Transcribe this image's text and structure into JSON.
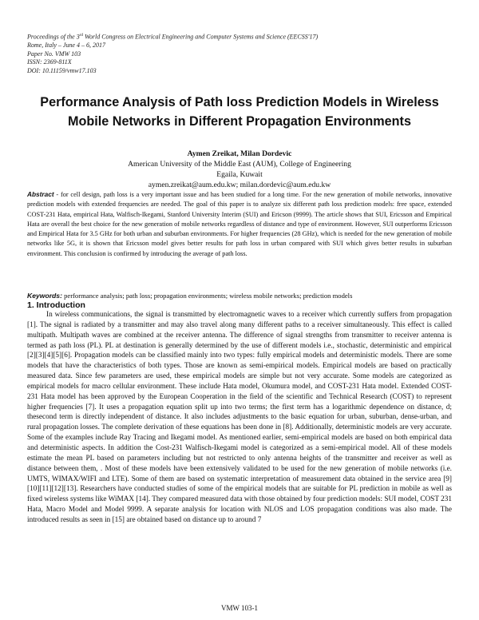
{
  "header": {
    "line1_pre": "Proceedings of the 3",
    "line1_sup": "rd",
    "line1_post": " World Congress on Electrical Engineering and Computer Systems and Science (EECSS'17)",
    "line2": "Rome, Italy – June 4 – 6, 2017",
    "line3": "Paper No. VMW 103",
    "line4": "ISSN: 2369-811X",
    "line5": "DOI: 10.11159/vmw17.103"
  },
  "title": {
    "line1": "Performance Analysis of Path loss Prediction Models in Wireless",
    "line2": "Mobile Networks in Different Propagation Environments"
  },
  "authors": {
    "names": "Aymen Zreikat, Milan Dordevic",
    "affiliation": "American University of the Middle East (AUM), College of Engineering",
    "location": "Egaila, Kuwait",
    "emails": "aymen.zreikat@aum.edu.kw; milan.dordevic@aum.edu.kw"
  },
  "abstract": {
    "label": "Abstract",
    "text": " - for cell design, path loss is a very important issue and has been studied for a long time. For the new generation of mobile networks, innovative prediction models with extended frequencies are needed. The goal of this paper is to analyze six different path loss prediction models: free space, extended COST-231 Hata, empirical Hata, Walfisch-Ikegami, Stanford University Interim (SUI) and Ericson (9999). The article shows that SUI, Ericsson and Empirical Hata are overall the best choice for the new generation of mobile networks regardless of distance and type of environment. However, SUI outperforms Ericsson and Empirical Hata for 3.5 GHz for both urban and suburban environments. For higher frequencies (28 GHz), which is needed for the new generation of mobile networks like 5G, it is shown that Ericsson model gives better results for path loss in urban compared with SUI which gives better results in suburban environment. This conclusion is confirmed by introducing the average of path loss."
  },
  "keywords": {
    "label": "Keywords:",
    "text": " performance analysis; path loss; propagation environments; wireless mobile networks; prediction models"
  },
  "section1": {
    "heading": "1. Introduction",
    "text": "In wireless communications, the signal is transmitted by electromagnetic waves to a receiver which currently suffers from propagation [1]. The signal is radiated by a transmitter and may also travel along many different paths to a receiver simultaneously. This effect is called multipath. Multipath waves are combined at the receiver antenna. The difference of signal strengths from transmitter to receiver antenna is termed as path loss (PL). PL at destination is generally determined by the use of different models i.e., stochastic, deterministic and empirical [2][3][4][5][6]. Propagation models can be classified mainly into two types: fully empirical models and deterministic models. There are some models that have the characteristics of both types. Those are known as semi-empirical models. Empirical models are based on practically measured data. Since few parameters are used, these empirical models are simple but not very accurate. Some models are categorized as empirical models for macro cellular environment. These include Hata model, Okumura model, and COST-231 Hata model. Extended COST-231 Hata model has been approved by the European Cooperation in the field of the scientific and Technical Research (COST) to represent higher frequencies [7]. It uses a propagation equation split up into two terms; the first term has a logarithmic dependence on distance, d; thesecond term is directly independent of distance. It also includes adjustments to the basic equation for urban, suburban, dense-urban, and rural propagation losses. The complete derivation of these equations has been done in [8]. Additionally, deterministic models are very accurate. Some of the examples include Ray Tracing and Ikegami model. As mentioned earlier, semi-empirical models are based on both empirical data and deterministic aspects. In addition the Cost-231 Walfisch-Ikegami model is categorized as a semi-empirical model. All of these models estimate the mean PL based on parameters including but not restricted to only antenna heights of the transmitter and receiver as well as distance between them, . Most of these models have been extensively validated to be used for the new generation of mobile networks (i.e. UMTS, WIMAX/WIFI and LTE). Some of them are based on systematic interpretation of measurement data obtained in the service area [9][10][11][12][13]. Researchers have conducted studies of some of the empirical models that are suitable for PL prediction in mobile as well as fixed wireless systems like WiMAX [14]. They compared measured data with those obtained by four prediction models: SUI model, COST 231 Hata, Macro Model and Model 9999. A separate analysis for location with NLOS and LOS propagation conditions was also made. The introduced results as seen in [15] are obtained based on distance up to around 7"
  },
  "footer": {
    "page": "VMW 103-1"
  }
}
